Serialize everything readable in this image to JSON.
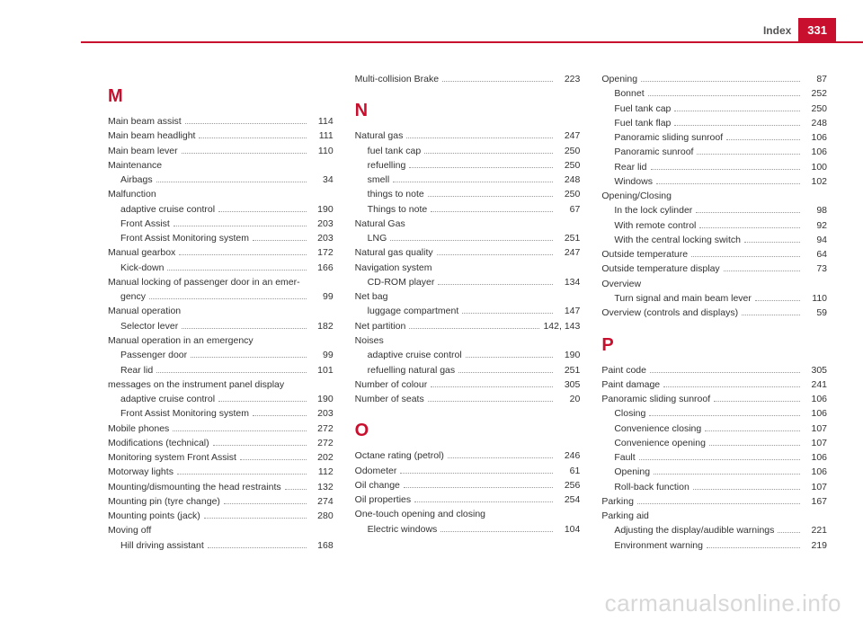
{
  "header": {
    "section": "Index",
    "page": "331"
  },
  "watermark": "carmanualsonline.info",
  "columns": [
    [
      {
        "type": "letter",
        "text": "M"
      },
      {
        "label": "Main beam assist",
        "page": 114
      },
      {
        "label": "Main beam headlight",
        "page": 111
      },
      {
        "label": "Main beam lever",
        "page": 110
      },
      {
        "label": "Maintenance",
        "nopage": true
      },
      {
        "label": "Airbags",
        "page": 34,
        "sub": true
      },
      {
        "label": "Malfunction",
        "nopage": true
      },
      {
        "label": "adaptive cruise control",
        "page": 190,
        "sub": true
      },
      {
        "label": "Front Assist",
        "page": 203,
        "sub": true
      },
      {
        "label": "Front Assist Monitoring system",
        "page": 203,
        "sub": true
      },
      {
        "label": "Manual gearbox",
        "page": 172
      },
      {
        "label": "Kick-down",
        "page": 166,
        "sub": true
      },
      {
        "label": "Manual locking of passenger door in an emer-",
        "nopage": true
      },
      {
        "label": "gency",
        "page": 99,
        "sub": true
      },
      {
        "label": "Manual operation",
        "nopage": true
      },
      {
        "label": "Selector lever",
        "page": 182,
        "sub": true
      },
      {
        "label": "Manual operation in an emergency",
        "nopage": true
      },
      {
        "label": "Passenger door",
        "page": 99,
        "sub": true
      },
      {
        "label": "Rear lid",
        "page": 101,
        "sub": true
      },
      {
        "label": "messages on the instrument panel display",
        "nopage": true
      },
      {
        "label": "adaptive cruise control",
        "page": 190,
        "sub": true
      },
      {
        "label": "Front Assist Monitoring system",
        "page": 203,
        "sub": true
      },
      {
        "label": "Mobile phones",
        "page": 272
      },
      {
        "label": "Modifications (technical)",
        "page": 272
      },
      {
        "label": "Monitoring system Front Assist",
        "page": 202
      },
      {
        "label": "Motorway lights",
        "page": 112
      },
      {
        "label": "Mounting/dismounting the head restraints",
        "page": 132
      },
      {
        "label": "Mounting pin (tyre change)",
        "page": 274
      },
      {
        "label": "Mounting points (jack)",
        "page": 280
      },
      {
        "label": "Moving off",
        "nopage": true
      },
      {
        "label": "Hill driving assistant",
        "page": 168,
        "sub": true
      }
    ],
    [
      {
        "label": "Multi-collision Brake",
        "page": 223
      },
      {
        "type": "letter",
        "text": "N"
      },
      {
        "label": "Natural gas",
        "page": 247
      },
      {
        "label": "fuel tank cap",
        "page": 250,
        "sub": true
      },
      {
        "label": "refuelling",
        "page": 250,
        "sub": true
      },
      {
        "label": "smell",
        "page": 248,
        "sub": true
      },
      {
        "label": "things to note",
        "page": 250,
        "sub": true
      },
      {
        "label": "Things to note",
        "page": 67,
        "sub": true
      },
      {
        "label": "Natural Gas",
        "nopage": true
      },
      {
        "label": "LNG",
        "page": 251,
        "sub": true
      },
      {
        "label": "Natural gas quality",
        "page": 247
      },
      {
        "label": "Navigation system",
        "nopage": true
      },
      {
        "label": "CD-ROM player",
        "page": 134,
        "sub": true
      },
      {
        "label": "Net bag",
        "nopage": true
      },
      {
        "label": "luggage compartment",
        "page": 147,
        "sub": true
      },
      {
        "label": "Net partition",
        "page": "142, 143"
      },
      {
        "label": "Noises",
        "nopage": true
      },
      {
        "label": "adaptive cruise control",
        "page": 190,
        "sub": true
      },
      {
        "label": "refuelling natural gas",
        "page": 251,
        "sub": true
      },
      {
        "label": "Number of colour",
        "page": 305
      },
      {
        "label": "Number of seats",
        "page": 20
      },
      {
        "type": "letter",
        "text": "O"
      },
      {
        "label": "Octane rating (petrol)",
        "page": 246
      },
      {
        "label": "Odometer",
        "page": 61
      },
      {
        "label": "Oil change",
        "page": 256
      },
      {
        "label": "Oil properties",
        "page": 254
      },
      {
        "label": "One-touch opening and closing",
        "nopage": true
      },
      {
        "label": "Electric windows",
        "page": 104,
        "sub": true
      }
    ],
    [
      {
        "label": "Opening",
        "page": 87
      },
      {
        "label": "Bonnet",
        "page": 252,
        "sub": true
      },
      {
        "label": "Fuel tank cap",
        "page": 250,
        "sub": true
      },
      {
        "label": "Fuel tank flap",
        "page": 248,
        "sub": true
      },
      {
        "label": "Panoramic sliding sunroof",
        "page": 106,
        "sub": true
      },
      {
        "label": "Panoramic sunroof",
        "page": 106,
        "sub": true
      },
      {
        "label": "Rear lid",
        "page": 100,
        "sub": true
      },
      {
        "label": "Windows",
        "page": 102,
        "sub": true
      },
      {
        "label": "Opening/Closing",
        "nopage": true
      },
      {
        "label": "In the lock cylinder",
        "page": 98,
        "sub": true
      },
      {
        "label": "With remote control",
        "page": 92,
        "sub": true
      },
      {
        "label": "With the central locking switch",
        "page": 94,
        "sub": true
      },
      {
        "label": "Outside temperature",
        "page": 64
      },
      {
        "label": "Outside temperature display",
        "page": 73
      },
      {
        "label": "Overview",
        "nopage": true
      },
      {
        "label": "Turn signal and main beam lever",
        "page": 110,
        "sub": true
      },
      {
        "label": "Overview (controls and displays)",
        "page": 59
      },
      {
        "type": "letter",
        "text": "P"
      },
      {
        "label": "Paint code",
        "page": 305
      },
      {
        "label": "Paint damage",
        "page": 241
      },
      {
        "label": "Panoramic sliding sunroof",
        "page": 106
      },
      {
        "label": "Closing",
        "page": 106,
        "sub": true
      },
      {
        "label": "Convenience closing",
        "page": 107,
        "sub": true
      },
      {
        "label": "Convenience opening",
        "page": 107,
        "sub": true
      },
      {
        "label": "Fault",
        "page": 106,
        "sub": true
      },
      {
        "label": "Opening",
        "page": 106,
        "sub": true
      },
      {
        "label": "Roll-back function",
        "page": 107,
        "sub": true
      },
      {
        "label": "Parking",
        "page": 167
      },
      {
        "label": "Parking aid",
        "nopage": true
      },
      {
        "label": "Adjusting the display/audible warnings",
        "page": 221,
        "sub": true
      },
      {
        "label": "Environment warning",
        "page": 219,
        "sub": true
      }
    ]
  ]
}
